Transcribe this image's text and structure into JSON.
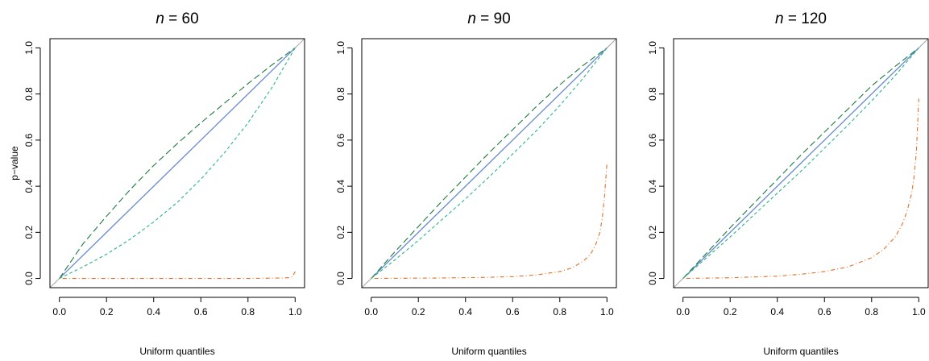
{
  "colors": {
    "ideal": "#aaaaaa",
    "blue_solid": "#6b8fd6",
    "darkgreen_longdash": "#1e7a3f",
    "teal_dashed": "#2bb58a",
    "orange_dotdash": "#e0702a"
  },
  "chart_data": [
    {
      "type": "line",
      "title_var": "n",
      "title_eq": " = 60",
      "xlabel": "Uniform quantiles",
      "ylabel": "p−value",
      "xlim": [
        0,
        1
      ],
      "ylim": [
        0,
        1
      ],
      "xticks": [
        "0.0",
        "0.2",
        "0.4",
        "0.6",
        "0.8",
        "1.0"
      ],
      "yticks": [
        "0.0",
        "0.2",
        "0.4",
        "0.6",
        "0.8",
        "1.0"
      ],
      "series": [
        {
          "style": "solid",
          "x": [
            0,
            0.5,
            1
          ],
          "y": [
            0,
            0.5,
            1
          ]
        },
        {
          "style": "longdash",
          "x": [
            0,
            0.1,
            0.2,
            0.3,
            0.4,
            0.5,
            0.6,
            0.7,
            0.8,
            0.9,
            1.0
          ],
          "y": [
            0,
            0.15,
            0.27,
            0.385,
            0.49,
            0.585,
            0.675,
            0.76,
            0.845,
            0.925,
            1.0
          ]
        },
        {
          "style": "dashed",
          "x": [
            0,
            0.1,
            0.2,
            0.3,
            0.4,
            0.5,
            0.6,
            0.7,
            0.8,
            0.9,
            1.0
          ],
          "y": [
            0,
            0.05,
            0.105,
            0.17,
            0.245,
            0.33,
            0.43,
            0.545,
            0.675,
            0.825,
            1.0
          ]
        },
        {
          "style": "dotdash",
          "x": [
            0,
            0.2,
            0.4,
            0.6,
            0.8,
            0.95,
            0.98,
            0.99,
            0.995,
            1.0
          ],
          "y": [
            0,
            0,
            0,
            0,
            0,
            0.002,
            0.004,
            0.008,
            0.02,
            0.03
          ]
        }
      ]
    },
    {
      "type": "line",
      "title_var": "n",
      "title_eq": " = 90",
      "xlabel": "Uniform quantiles",
      "ylabel": "",
      "xlim": [
        0,
        1
      ],
      "ylim": [
        0,
        1
      ],
      "xticks": [
        "0.0",
        "0.2",
        "0.4",
        "0.6",
        "0.8",
        "1.0"
      ],
      "yticks": [
        "0.0",
        "0.2",
        "0.4",
        "0.6",
        "0.8",
        "1.0"
      ],
      "series": [
        {
          "style": "solid",
          "x": [
            0,
            0.5,
            1
          ],
          "y": [
            0,
            0.5,
            1
          ]
        },
        {
          "style": "longdash",
          "x": [
            0,
            0.1,
            0.2,
            0.3,
            0.4,
            0.5,
            0.6,
            0.7,
            0.8,
            0.9,
            1.0
          ],
          "y": [
            0,
            0.115,
            0.225,
            0.335,
            0.44,
            0.545,
            0.645,
            0.745,
            0.84,
            0.925,
            1.0
          ]
        },
        {
          "style": "dashed",
          "x": [
            0,
            0.1,
            0.2,
            0.3,
            0.4,
            0.5,
            0.6,
            0.7,
            0.8,
            0.9,
            1.0
          ],
          "y": [
            0,
            0.08,
            0.165,
            0.255,
            0.345,
            0.44,
            0.54,
            0.64,
            0.75,
            0.87,
            1.0
          ]
        },
        {
          "style": "dotdash",
          "x": [
            0,
            0.3,
            0.5,
            0.6,
            0.7,
            0.8,
            0.85,
            0.9,
            0.93,
            0.95,
            0.97,
            0.98,
            0.99,
            1.0
          ],
          "y": [
            0,
            0.002,
            0.005,
            0.008,
            0.015,
            0.03,
            0.045,
            0.075,
            0.105,
            0.14,
            0.2,
            0.26,
            0.36,
            0.5
          ]
        }
      ]
    },
    {
      "type": "line",
      "title_var": "n",
      "title_eq": " = 120",
      "xlabel": "Uniform quantiles",
      "ylabel": "",
      "xlim": [
        0,
        1
      ],
      "ylim": [
        0,
        1
      ],
      "xticks": [
        "0.0",
        "0.2",
        "0.4",
        "0.6",
        "0.8",
        "1.0"
      ],
      "yticks": [
        "0.0",
        "0.2",
        "0.4",
        "0.6",
        "0.8",
        "1.0"
      ],
      "series": [
        {
          "style": "solid",
          "x": [
            0,
            0.5,
            1
          ],
          "y": [
            0,
            0.5,
            1
          ]
        },
        {
          "style": "longdash",
          "x": [
            0,
            0.1,
            0.2,
            0.3,
            0.4,
            0.5,
            0.6,
            0.7,
            0.8,
            0.9,
            1.0
          ],
          "y": [
            0,
            0.11,
            0.22,
            0.325,
            0.43,
            0.535,
            0.635,
            0.735,
            0.835,
            0.92,
            1.0
          ]
        },
        {
          "style": "dashed",
          "x": [
            0,
            0.1,
            0.2,
            0.3,
            0.4,
            0.5,
            0.6,
            0.7,
            0.8,
            0.9,
            1.0
          ],
          "y": [
            0,
            0.09,
            0.18,
            0.275,
            0.37,
            0.465,
            0.565,
            0.665,
            0.77,
            0.88,
            1.0
          ]
        },
        {
          "style": "dotdash",
          "x": [
            0,
            0.2,
            0.4,
            0.5,
            0.6,
            0.7,
            0.8,
            0.85,
            0.9,
            0.93,
            0.95,
            0.97,
            0.98,
            0.99,
            1.0
          ],
          "y": [
            0,
            0.003,
            0.01,
            0.018,
            0.03,
            0.05,
            0.09,
            0.125,
            0.18,
            0.235,
            0.29,
            0.37,
            0.44,
            0.55,
            0.78
          ]
        }
      ]
    }
  ]
}
